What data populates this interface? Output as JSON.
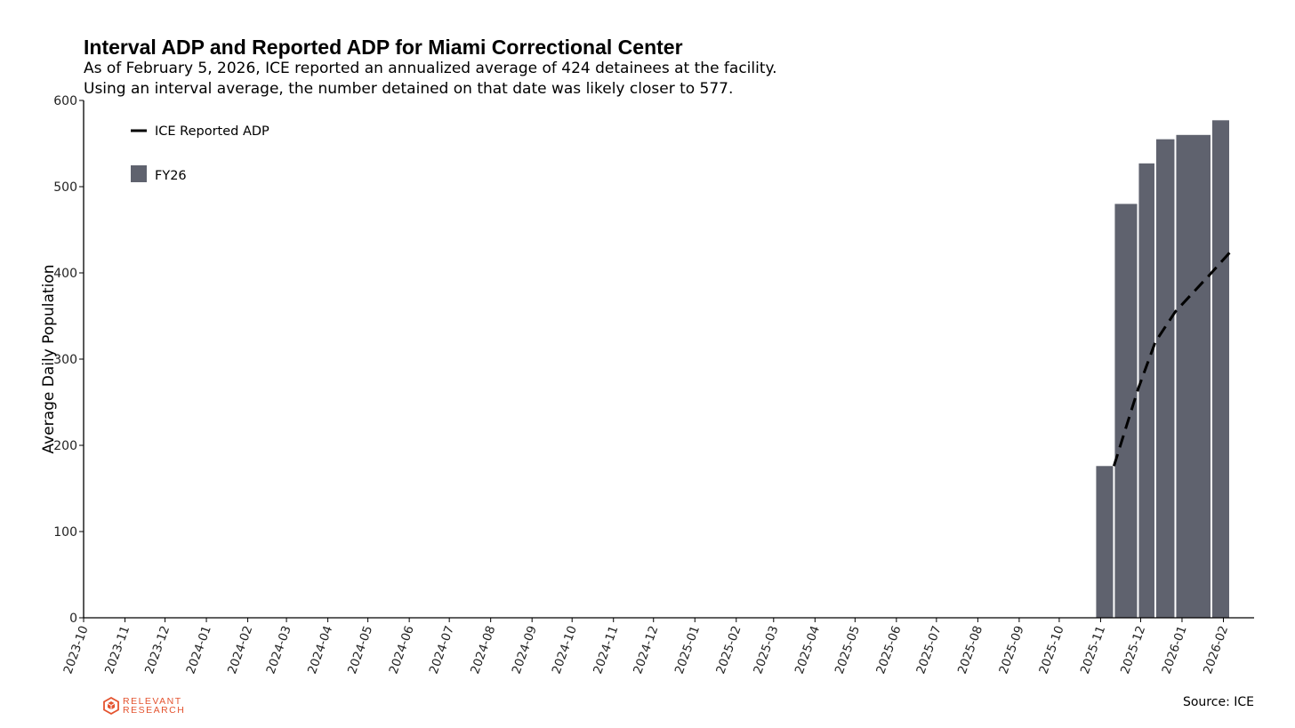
{
  "chart_data": {
    "type": "bar",
    "title": "Interval ADP and Reported ADP for Miami Correctional Center",
    "subtitle_lines": [
      "As of February 5, 2026, ICE reported an annualized average of 424 detainees at the facility.",
      "Using an interval average, the number detained on that date was likely closer to 577."
    ],
    "ylabel": "Average Daily Population",
    "xlabel": "",
    "ylim": [
      0,
      600
    ],
    "yticks": [
      0,
      100,
      200,
      300,
      400,
      500,
      600
    ],
    "xlim": [
      "2023-10-01",
      "2026-02-24"
    ],
    "xticks": [
      "2023-10",
      "2023-11",
      "2023-12",
      "2024-01",
      "2024-02",
      "2024-03",
      "2024-04",
      "2024-05",
      "2024-06",
      "2024-07",
      "2024-08",
      "2024-09",
      "2024-10",
      "2024-11",
      "2024-12",
      "2025-01",
      "2025-02",
      "2025-03",
      "2025-04",
      "2025-05",
      "2025-06",
      "2025-07",
      "2025-08",
      "2025-09",
      "2025-10",
      "2025-11",
      "2025-12",
      "2026-01",
      "2026-02"
    ],
    "bar_color": "#5f626e",
    "bars": [
      {
        "start": "2025-10-28",
        "end": "2025-11-11",
        "value": 176
      },
      {
        "start": "2025-11-11",
        "end": "2025-11-29",
        "value": 480
      },
      {
        "start": "2025-11-29",
        "end": "2025-12-12",
        "value": 527
      },
      {
        "start": "2025-12-12",
        "end": "2025-12-27",
        "value": 555
      },
      {
        "start": "2025-12-27",
        "end": "2026-01-23",
        "value": 560
      },
      {
        "start": "2026-01-23",
        "end": "2026-02-06",
        "value": 577
      }
    ],
    "line": {
      "name": "ICE Reported ADP",
      "style": "dashed",
      "color": "#000000",
      "points": [
        {
          "x": "2025-11-11",
          "y": 176
        },
        {
          "x": "2025-11-29",
          "y": 265
        },
        {
          "x": "2025-12-12",
          "y": 320
        },
        {
          "x": "2025-12-27",
          "y": 355
        },
        {
          "x": "2026-01-23",
          "y": 400
        },
        {
          "x": "2026-02-06",
          "y": 424
        }
      ]
    },
    "legend": {
      "placement": "top-left",
      "entries": [
        {
          "label": "ICE Reported ADP",
          "kind": "line"
        },
        {
          "label": "FY26",
          "kind": "bar"
        }
      ]
    },
    "grid": false,
    "source": "Source: ICE"
  },
  "branding": {
    "logo_line1": "RELEVANT",
    "logo_line2": "RESEARCH",
    "logo_color": "#e4532f",
    "logo_icon": "hexagon-cube-icon"
  }
}
